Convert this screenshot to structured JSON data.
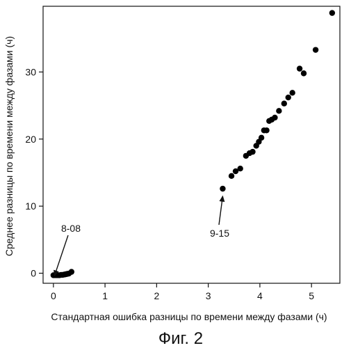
{
  "chart_data": {
    "type": "scatter",
    "title": "",
    "xlabel": "Стандартная ошибка разницы по времени между фазами (ч)",
    "ylabel": "Среднее разницы по времени между фазами (ч)",
    "xlim": [
      -0.2,
      5.55
    ],
    "ylim": [
      -1.5,
      39.8
    ],
    "x_ticks": [
      0,
      1,
      2,
      3,
      4,
      5
    ],
    "y_ticks": [
      0,
      10,
      20,
      30
    ],
    "x_tick_labels": [
      "0",
      "1",
      "2",
      "3",
      "4",
      "5"
    ],
    "y_tick_labels": [
      "0",
      "10",
      "20",
      "30"
    ],
    "grid": false,
    "legend": "none",
    "marker_color": "#000000",
    "series": [
      {
        "x": [
          0.0,
          0.03,
          0.06,
          0.09,
          0.12,
          0.15,
          0.18,
          0.21,
          0.24,
          0.27,
          0.3,
          0.35,
          3.28,
          3.45,
          3.53,
          3.62,
          3.73,
          3.8,
          3.86,
          3.93,
          3.98,
          4.03,
          4.08,
          4.13,
          4.18,
          4.23,
          4.29,
          4.37,
          4.47,
          4.55,
          4.63,
          4.77,
          4.85,
          5.08,
          5.4
        ],
        "y": [
          -0.3,
          -0.3,
          -0.3,
          -0.3,
          -0.3,
          -0.25,
          -0.25,
          -0.2,
          -0.15,
          -0.1,
          -0.05,
          0.2,
          12.6,
          14.5,
          15.2,
          15.6,
          17.5,
          17.9,
          18.1,
          19.0,
          19.6,
          20.2,
          21.3,
          21.3,
          22.7,
          22.9,
          23.2,
          24.2,
          25.3,
          26.2,
          26.9,
          30.5,
          29.8,
          33.3,
          38.8
        ]
      }
    ],
    "annotations": [
      {
        "label": "8-08",
        "x": 0.02,
        "y": -0.4
      },
      {
        "label": "9-15",
        "x": 3.28,
        "y": 11.5
      }
    ]
  },
  "caption": "Фиг. 2"
}
